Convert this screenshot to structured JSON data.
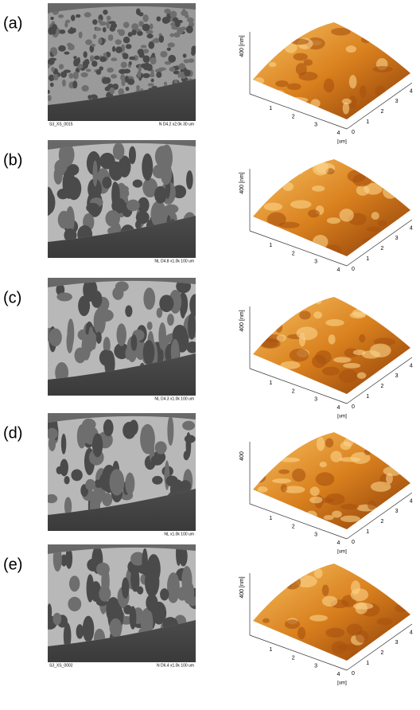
{
  "panels": [
    {
      "label": "(a)",
      "sem_left": "S3_XS_0015",
      "sem_right": "N   D4.2  x2.0k   30 um",
      "afm": {
        "z_label": "400 [nm]",
        "x_ticks": [
          "1",
          "2",
          "3",
          "4"
        ],
        "y_ticks": [
          "0",
          "1",
          "2",
          "3",
          "4"
        ],
        "unit": "[um]"
      }
    },
    {
      "label": "(b)",
      "sem_right": "NL   D4.8  x1.0k   100 um",
      "afm": {
        "z_label": "400 [nm]",
        "x_ticks": [
          "1",
          "2",
          "3",
          "4"
        ],
        "y_ticks": [
          "0",
          "1",
          "2",
          "3",
          "4"
        ]
      }
    },
    {
      "label": "(c)",
      "sem_right": "NL   D4.3  x1.0k   100 um",
      "afm": {
        "z_label": "400 [nm]",
        "x_ticks": [
          "1",
          "2",
          "3",
          "4"
        ],
        "y_ticks": [
          "0",
          "1",
          "2",
          "3",
          "4"
        ],
        "unit": "[um]"
      }
    },
    {
      "label": "(d)",
      "sem_right": "NL        x1.0k   100 um",
      "afm": {
        "z_label": "400",
        "x_ticks": [
          "1",
          "2",
          "3",
          "4"
        ],
        "y_ticks": [
          "0",
          "1",
          "2",
          "3",
          "4"
        ],
        "unit": "[um]"
      }
    },
    {
      "label": "(e)",
      "sem_left": "S3_XS_0002",
      "sem_right": "N   D6.4  x1.0k   100 um",
      "afm": {
        "z_label": "400 [nm]",
        "x_ticks": [
          "1",
          "2",
          "3",
          "4"
        ],
        "y_ticks": [
          "0",
          "1",
          "2",
          "3",
          "4"
        ],
        "unit": "[um]"
      }
    }
  ]
}
